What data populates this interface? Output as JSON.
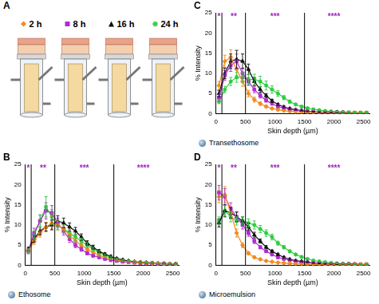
{
  "panel_a": {
    "label": "A"
  },
  "chart_data": [
    {
      "panel": "B",
      "type": "line",
      "subtitle": "Ethosome",
      "x_label": "Skin depth (µm)",
      "y_label": "% Intensity",
      "xlim": [
        0,
        2600
      ],
      "xticks": [
        0,
        500,
        1000,
        1500,
        2000,
        2500
      ],
      "ylim": [
        0,
        25
      ],
      "yticks": [
        0,
        5,
        10,
        15,
        20,
        25
      ],
      "grid": false,
      "x": [
        50,
        150,
        250,
        350,
        450,
        550,
        650,
        750,
        850,
        950,
        1050,
        1150,
        1250,
        1350,
        1450,
        1550,
        1650,
        1750,
        1850,
        1950,
        2050,
        2150,
        2250,
        2350,
        2450,
        2550
      ],
      "dividers": [
        100,
        500,
        1500
      ],
      "annotations": [
        {
          "x": 50,
          "y": 24.3,
          "text": "*",
          "color": "#a020c0"
        },
        {
          "x": 300,
          "y": 24.3,
          "text": "**",
          "color": "#a020c0"
        },
        {
          "x": 1000,
          "y": 24.3,
          "text": "***",
          "color": "#a020c0"
        },
        {
          "x": 2000,
          "y": 24.3,
          "text": "****",
          "color": "#a020c0"
        }
      ],
      "series": [
        {
          "name": "2 h",
          "color": "#f28c1e",
          "marker": "diamond",
          "line_style": "solid",
          "values": [
            3.5,
            6,
            8,
            9.5,
            10.5,
            10,
            9,
            7.5,
            6,
            5,
            4,
            3.2,
            2.5,
            2,
            1.6,
            1.3,
            1.1,
            0.9,
            0.8,
            0.7,
            0.6,
            0.5,
            0.5,
            0.4,
            0.4,
            0.3
          ],
          "errors": [
            0.5,
            0.8,
            1,
            1.2,
            1.5,
            1.2,
            1,
            0.8,
            0.6,
            0.5,
            0.4,
            0.3,
            0.3,
            0.2,
            0.2,
            0.2,
            0.1,
            0.1,
            0.1,
            0.1,
            0.1,
            0.1,
            0.1,
            0.1,
            0.1,
            0.1
          ]
        },
        {
          "name": "8 h",
          "color": "#b02bd0",
          "marker": "square",
          "line_style": "solid",
          "values": [
            3.5,
            8,
            11,
            13.5,
            13,
            10.5,
            8.5,
            6.5,
            5,
            4,
            3,
            2.4,
            2,
            1.6,
            1.3,
            1.1,
            0.9,
            0.8,
            0.7,
            0.6,
            0.5,
            0.5,
            0.4,
            0.4,
            0.3,
            0.3
          ],
          "errors": [
            0.6,
            1.2,
            1.5,
            2,
            1.8,
            1.2,
            1,
            0.8,
            0.6,
            0.5,
            0.4,
            0.3,
            0.3,
            0.2,
            0.2,
            0.2,
            0.1,
            0.1,
            0.1,
            0.1,
            0.1,
            0.1,
            0.1,
            0.1,
            0.1,
            0.1
          ]
        },
        {
          "name": "16 h",
          "color": "#111111",
          "marker": "triangle",
          "line_style": "solid",
          "values": [
            4,
            6.5,
            8.5,
            9.5,
            10,
            11,
            10.5,
            9.5,
            8.5,
            7,
            5.5,
            4.5,
            3.5,
            2.8,
            2.2,
            1.7,
            1.4,
            1.1,
            0.9,
            0.8,
            0.7,
            0.6,
            0.5,
            0.5,
            0.4,
            0.4
          ],
          "errors": [
            0.5,
            0.8,
            1,
            1,
            1.2,
            1.3,
            1.2,
            1,
            0.9,
            0.8,
            0.6,
            0.5,
            0.4,
            0.3,
            0.3,
            0.2,
            0.2,
            0.1,
            0.1,
            0.1,
            0.1,
            0.1,
            0.1,
            0.1,
            0.1,
            0.1
          ]
        },
        {
          "name": "24 h",
          "color": "#2ecc40",
          "marker": "star",
          "line_style": "solid",
          "values": [
            3.5,
            7.5,
            11,
            14.5,
            12,
            10,
            9,
            8,
            7,
            6,
            5,
            4,
            3.2,
            2.5,
            2,
            1.6,
            1.3,
            1.1,
            0.9,
            0.8,
            0.7,
            0.6,
            0.5,
            0.4,
            0.4,
            0.3
          ],
          "errors": [
            0.6,
            1,
            1.5,
            2.5,
            1.8,
            1.2,
            1,
            0.9,
            0.8,
            0.7,
            0.6,
            0.5,
            0.4,
            0.3,
            0.3,
            0.2,
            0.2,
            0.1,
            0.1,
            0.1,
            0.1,
            0.1,
            0.1,
            0.1,
            0.1,
            0.1
          ]
        }
      ]
    },
    {
      "panel": "C",
      "type": "line",
      "subtitle": "Transethosome",
      "x_label": "Skin depth (µm)",
      "y_label": "% Intensity",
      "xlim": [
        0,
        2600
      ],
      "xticks": [
        0,
        500,
        1000,
        1500,
        2000,
        2500
      ],
      "ylim": [
        0,
        25
      ],
      "yticks": [
        0,
        5,
        10,
        15,
        20,
        25
      ],
      "grid": false,
      "x": [
        50,
        150,
        250,
        350,
        450,
        550,
        650,
        750,
        850,
        950,
        1050,
        1150,
        1250,
        1350,
        1450,
        1550,
        1650,
        1750,
        1850,
        1950,
        2050,
        2150,
        2250,
        2350,
        2450,
        2550
      ],
      "dividers": [
        100,
        500,
        1500
      ],
      "annotations": [
        {
          "x": 50,
          "y": 24.3,
          "text": "*",
          "color": "#a020c0"
        },
        {
          "x": 300,
          "y": 24.3,
          "text": "**",
          "color": "#a020c0"
        },
        {
          "x": 1000,
          "y": 24.3,
          "text": "***",
          "color": "#a020c0"
        },
        {
          "x": 2000,
          "y": 24.3,
          "text": "****",
          "color": "#a020c0"
        }
      ],
      "series": [
        {
          "name": "2 h",
          "color": "#f28c1e",
          "marker": "diamond",
          "line_style": "solid",
          "values": [
            7,
            13,
            14,
            11,
            8,
            5,
            3.5,
            2.5,
            1.8,
            1.3,
            1,
            0.8,
            0.6,
            0.5,
            0.4,
            0.4,
            0.3,
            0.3,
            0.3,
            0.2,
            0.2,
            0.2,
            0.2,
            0.2,
            0.2,
            0.2
          ],
          "errors": [
            1,
            1.5,
            1.8,
            1.5,
            1.2,
            0.8,
            0.6,
            0.4,
            0.3,
            0.2,
            0.2,
            0.1,
            0.1,
            0.1,
            0.1,
            0.1,
            0.1,
            0.1,
            0.1,
            0.1,
            0.1,
            0.1,
            0.1,
            0.1,
            0.1,
            0.1
          ]
        },
        {
          "name": "8 h",
          "color": "#b02bd0",
          "marker": "square",
          "line_style": "solid",
          "values": [
            4,
            9.5,
            12,
            13,
            10,
            8,
            6,
            4.5,
            3.3,
            2.5,
            1.8,
            1.4,
            1.1,
            0.9,
            0.7,
            0.6,
            0.5,
            0.4,
            0.4,
            0.3,
            0.3,
            0.3,
            0.2,
            0.2,
            0.2,
            0.2
          ],
          "errors": [
            0.8,
            1.2,
            1.5,
            1.8,
            1.3,
            1,
            0.8,
            0.6,
            0.4,
            0.3,
            0.3,
            0.2,
            0.2,
            0.1,
            0.1,
            0.1,
            0.1,
            0.1,
            0.1,
            0.1,
            0.1,
            0.1,
            0.1,
            0.1,
            0.1,
            0.1
          ]
        },
        {
          "name": "16 h",
          "color": "#111111",
          "marker": "triangle",
          "line_style": "solid",
          "values": [
            5,
            10,
            13,
            13.5,
            13,
            11,
            8,
            6,
            4.5,
            3.2,
            2.3,
            1.7,
            1.3,
            1,
            0.8,
            0.6,
            0.5,
            0.4,
            0.4,
            0.3,
            0.3,
            0.3,
            0.2,
            0.2,
            0.2,
            0.2
          ],
          "errors": [
            0.8,
            1.3,
            1.8,
            2.2,
            1.8,
            1.3,
            1,
            0.7,
            0.5,
            0.4,
            0.3,
            0.2,
            0.2,
            0.1,
            0.1,
            0.1,
            0.1,
            0.1,
            0.1,
            0.1,
            0.1,
            0.1,
            0.1,
            0.1,
            0.1,
            0.1
          ]
        },
        {
          "name": "24 h",
          "color": "#2ecc40",
          "marker": "star",
          "line_style": "solid",
          "values": [
            3,
            6,
            8,
            9,
            9,
            8.5,
            8.5,
            8,
            7,
            6,
            5,
            4,
            3,
            2.3,
            1.8,
            1.4,
            1.1,
            0.9,
            0.7,
            0.6,
            0.5,
            0.4,
            0.4,
            0.3,
            0.3,
            0.3
          ],
          "errors": [
            0.5,
            0.8,
            1,
            1.2,
            1.2,
            1.2,
            1.3,
            1.3,
            1.1,
            0.9,
            0.7,
            0.5,
            0.4,
            0.3,
            0.2,
            0.2,
            0.1,
            0.1,
            0.1,
            0.1,
            0.1,
            0.1,
            0.1,
            0.1,
            0.1,
            0.1
          ]
        }
      ]
    },
    {
      "panel": "D",
      "type": "line",
      "subtitle": "Microemulsion",
      "x_label": "Skin depth (µm)",
      "y_label": "% Intensity",
      "xlim": [
        0,
        2600
      ],
      "xticks": [
        0,
        500,
        1000,
        1500,
        2000,
        2500
      ],
      "ylim": [
        0,
        25
      ],
      "yticks": [
        0,
        5,
        10,
        15,
        20,
        25
      ],
      "grid": false,
      "x": [
        50,
        150,
        250,
        350,
        450,
        550,
        650,
        750,
        850,
        950,
        1050,
        1150,
        1250,
        1350,
        1450,
        1550,
        1650,
        1750,
        1850,
        1950,
        2050,
        2150,
        2250,
        2350,
        2450,
        2550
      ],
      "dividers": [
        100,
        500,
        1500
      ],
      "annotations": [
        {
          "x": 50,
          "y": 24.3,
          "text": "*",
          "color": "#a020c0"
        },
        {
          "x": 300,
          "y": 24.3,
          "text": "**",
          "color": "#a020c0"
        },
        {
          "x": 1000,
          "y": 24.3,
          "text": "***",
          "color": "#a020c0"
        },
        {
          "x": 2000,
          "y": 24.3,
          "text": "****",
          "color": "#a020c0"
        }
      ],
      "series": [
        {
          "name": "2 h",
          "color": "#f28c1e",
          "marker": "diamond",
          "line_style": "solid",
          "values": [
            17,
            17.5,
            13,
            8,
            5,
            3,
            2,
            1.5,
            1.1,
            0.9,
            0.7,
            0.6,
            0.5,
            0.4,
            0.4,
            0.3,
            0.3,
            0.3,
            0.2,
            0.2,
            0.2,
            0.2,
            0.2,
            0.2,
            0.2,
            0.2
          ],
          "errors": [
            1.5,
            2,
            1.5,
            1,
            0.6,
            0.4,
            0.3,
            0.2,
            0.2,
            0.1,
            0.1,
            0.1,
            0.1,
            0.1,
            0.1,
            0.1,
            0.1,
            0.1,
            0.1,
            0.1,
            0.1,
            0.1,
            0.1,
            0.1,
            0.1,
            0.1
          ]
        },
        {
          "name": "8 h",
          "color": "#b02bd0",
          "marker": "square",
          "line_style": "solid",
          "values": [
            18,
            17,
            14,
            12,
            10,
            8,
            6,
            4.5,
            3.5,
            2.7,
            2,
            1.6,
            1.3,
            1,
            0.8,
            0.7,
            0.6,
            0.5,
            0.4,
            0.4,
            0.3,
            0.3,
            0.3,
            0.3,
            0.2,
            0.2
          ],
          "errors": [
            1.8,
            2,
            1.5,
            1.2,
            1,
            0.8,
            0.6,
            0.4,
            0.3,
            0.3,
            0.2,
            0.2,
            0.1,
            0.1,
            0.1,
            0.1,
            0.1,
            0.1,
            0.1,
            0.1,
            0.1,
            0.1,
            0.1,
            0.1,
            0.1,
            0.1
          ]
        },
        {
          "name": "16 h",
          "color": "#111111",
          "marker": "triangle",
          "line_style": "solid",
          "values": [
            10.5,
            13.5,
            13,
            12,
            11,
            9.5,
            7.5,
            6,
            4.5,
            3.5,
            2.7,
            2,
            1.5,
            1.2,
            1,
            0.8,
            0.6,
            0.5,
            0.4,
            0.4,
            0.3,
            0.3,
            0.3,
            0.3,
            0.2,
            0.2
          ],
          "errors": [
            1,
            1.5,
            1.3,
            1.2,
            1,
            0.9,
            0.7,
            0.5,
            0.4,
            0.3,
            0.3,
            0.2,
            0.2,
            0.1,
            0.1,
            0.1,
            0.1,
            0.1,
            0.1,
            0.1,
            0.1,
            0.1,
            0.1,
            0.1,
            0.1,
            0.1
          ]
        },
        {
          "name": "24 h",
          "color": "#2ecc40",
          "marker": "star",
          "line_style": "solid",
          "values": [
            11,
            13.5,
            12,
            11,
            11,
            10.5,
            10,
            9,
            8,
            7,
            5.5,
            4.5,
            3.5,
            2.7,
            2.1,
            1.6,
            1.2,
            1,
            0.8,
            0.6,
            0.5,
            0.4,
            0.4,
            0.3,
            0.3,
            0.3
          ],
          "errors": [
            1,
            1.3,
            1.2,
            1,
            1,
            1,
            1,
            0.9,
            0.8,
            0.7,
            0.5,
            0.4,
            0.3,
            0.3,
            0.2,
            0.2,
            0.1,
            0.1,
            0.1,
            0.1,
            0.1,
            0.1,
            0.1,
            0.1,
            0.1,
            0.1
          ]
        }
      ]
    }
  ]
}
